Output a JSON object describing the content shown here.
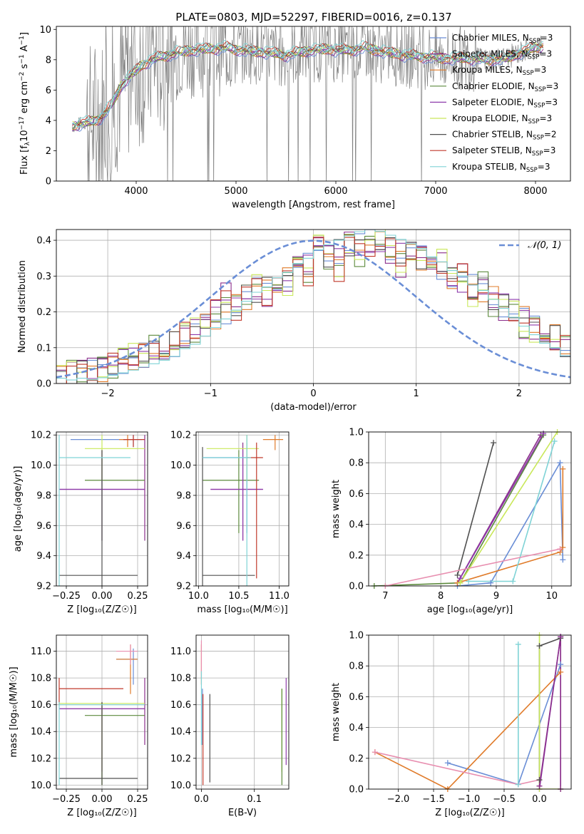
{
  "figure": {
    "title": "PLATE=0803, MJD=52297, FIBERID=0016, z=0.137"
  },
  "colors": {
    "grid": "#b0b0b0",
    "data_gray": "#808080",
    "gaussian": "#6a8ed6",
    "series": [
      "#6a8ed6",
      "#8b2f8b",
      "#e07b2a",
      "#5c8a3c",
      "#8e3bab",
      "#c9e85a",
      "#505050",
      "#c0392b",
      "#7fd3d6",
      "#e88fb0"
    ]
  },
  "chart_data": [
    {
      "type": "line",
      "id": "spectrum",
      "xlabel": "wavelength [Angstrom, rest frame]",
      "ylabel_parts": {
        "a": "Flux [f",
        "b": "λ",
        "c": "10",
        "d": "−17",
        "e": " erg cm",
        "f": "−2",
        "g": " s",
        "h": "−1",
        "i": " A",
        "j": "−1",
        "k": "]"
      },
      "xlim": [
        3200,
        8350
      ],
      "ylim": [
        0,
        10.2
      ],
      "xticks": [
        4000,
        5000,
        6000,
        7000,
        8000
      ],
      "yticks": [
        0,
        2,
        4,
        6,
        8,
        10
      ],
      "legend": "top-right",
      "series": [
        {
          "label": "Chabrier MILES, N",
          "sub": "SSP",
          "rest": "=3"
        },
        {
          "label": "Salpeter MILES, N",
          "sub": "SSP",
          "rest": "=3"
        },
        {
          "label": "Kroupa MILES, N",
          "sub": "SSP",
          "rest": "=3"
        },
        {
          "label": "Chabrier ELODIE, N",
          "sub": "SSP",
          "rest": "=3"
        },
        {
          "label": "Salpeter ELODIE, N",
          "sub": "SSP",
          "rest": "=3"
        },
        {
          "label": "Kroupa ELODIE, N",
          "sub": "SSP",
          "rest": "=3"
        },
        {
          "label": "Chabrier STELIB, N",
          "sub": "SSP",
          "rest": "=2"
        },
        {
          "label": "Salpeter STELIB, N",
          "sub": "SSP",
          "rest": "=3"
        },
        {
          "label": "Kroupa STELIB, N",
          "sub": "SSP",
          "rest": "=3"
        }
      ],
      "continuum": {
        "x": [
          3350,
          3450,
          3550,
          3650,
          3750,
          3850,
          3950,
          4050,
          4150,
          4300,
          4500,
          4700,
          4900,
          5100,
          5300,
          5500,
          5700,
          5900,
          6100,
          6300,
          6500,
          6700,
          6900,
          7100,
          7300,
          7500,
          7700,
          7900,
          8050
        ],
        "y": [
          3.6,
          3.8,
          3.9,
          4.2,
          5.0,
          6.3,
          7.0,
          7.6,
          8.0,
          8.3,
          8.6,
          8.7,
          8.8,
          8.6,
          8.5,
          8.3,
          8.6,
          8.7,
          8.6,
          8.8,
          8.5,
          8.3,
          8.2,
          8.1,
          8.1,
          8.0,
          8.1,
          8.6,
          8.9
        ]
      }
    },
    {
      "type": "histogram",
      "id": "residuals",
      "xlabel": "(data-model)/error",
      "ylabel": "Normed distribution",
      "xlim": [
        -2.5,
        2.5
      ],
      "ylim": [
        0,
        0.43
      ],
      "xticks": [
        -2,
        -1,
        0,
        1,
        2
      ],
      "yticks": [
        0.0,
        0.1,
        0.2,
        0.3,
        0.4
      ],
      "legend_label": "𝒩(0, 1)",
      "legend": "top-right",
      "bin_width": 0.1,
      "bin_start": -2.5,
      "series": [
        [
          0.02,
          0.02,
          0.03,
          0.03,
          0.04,
          0.05,
          0.06,
          0.07,
          0.08,
          0.09,
          0.1,
          0.11,
          0.13,
          0.14,
          0.16,
          0.18,
          0.2,
          0.22,
          0.24,
          0.26,
          0.27,
          0.29,
          0.3,
          0.32,
          0.33,
          0.35,
          0.36,
          0.37,
          0.38,
          0.39,
          0.4,
          0.39,
          0.38,
          0.37,
          0.36,
          0.35,
          0.33,
          0.32,
          0.3,
          0.29,
          0.27,
          0.26,
          0.24,
          0.22,
          0.2,
          0.18,
          0.16,
          0.14,
          0.13,
          0.11
        ],
        [
          0.02,
          0.03,
          0.03,
          0.04,
          0.05,
          0.05,
          0.07,
          0.08,
          0.08,
          0.1,
          0.11,
          0.1,
          0.14,
          0.15,
          0.15,
          0.2,
          0.26,
          0.21,
          0.25,
          0.27,
          0.25,
          0.3,
          0.28,
          0.36,
          0.3,
          0.38,
          0.35,
          0.32,
          0.4,
          0.36,
          0.38,
          0.4,
          0.37,
          0.33,
          0.38,
          0.36,
          0.31,
          0.34,
          0.29,
          0.3,
          0.25,
          0.28,
          0.22,
          0.2,
          0.21,
          0.16,
          0.15,
          0.15,
          0.11,
          0.1
        ]
      ]
    },
    {
      "type": "scatter",
      "id": "age-vs-Z",
      "xlabel": "Z [log₁₀(Z/Z☉)]",
      "ylabel": "age  [log₁₀(age/yr)]",
      "xlim": [
        -0.32,
        0.32
      ],
      "ylim": [
        9.2,
        10.22
      ],
      "xticks": [
        -0.25,
        0.0,
        0.25
      ],
      "yticks": [
        9.2,
        9.4,
        9.6,
        9.8,
        10.0,
        10.2
      ],
      "points": [
        {
          "x": 0.22,
          "y": 10.17,
          "xe": [
            -0.22,
            0.28
          ],
          "ye": [
            10.12,
            10.2
          ],
          "c": 0
        },
        {
          "x": 0.3,
          "y": 9.84,
          "xe": [
            -0.3,
            0.3
          ],
          "ye": [
            9.5,
            10.2
          ],
          "c": 1
        },
        {
          "x": 0.18,
          "y": 10.17,
          "xe": [
            0.12,
            0.22
          ],
          "ye": [
            10.12,
            10.2
          ],
          "c": 2
        },
        {
          "x": 0.0,
          "y": 9.9,
          "xe": [
            -0.12,
            0.3
          ],
          "ye": [
            9.5,
            10.05
          ],
          "c": 3
        },
        {
          "x": 0.0,
          "y": 9.84,
          "xe": [
            -0.3,
            0.3
          ],
          "ye": [
            9.5,
            10.1
          ],
          "c": 4
        },
        {
          "x": 0.0,
          "y": 10.11,
          "xe": [
            -0.12,
            0.3
          ],
          "ye": [
            9.9,
            10.2
          ],
          "c": 5
        },
        {
          "x": 0.0,
          "y": 9.27,
          "xe": [
            -0.3,
            0.25
          ],
          "ye": [
            9.2,
            10.1
          ],
          "c": 6
        },
        {
          "x": 0.22,
          "y": 10.17,
          "xe": [
            0.15,
            0.3
          ],
          "ye": [
            10.12,
            10.2
          ],
          "c": 7
        },
        {
          "x": -0.3,
          "y": 10.05,
          "xe": [
            -0.3,
            0.2
          ],
          "ye": [
            9.2,
            10.2
          ],
          "c": 8
        }
      ]
    },
    {
      "type": "scatter",
      "id": "age-vs-mass",
      "xlabel": "mass [log₁₀(M/M☉)]",
      "ylabel": "",
      "xlim": [
        9.97,
        11.12
      ],
      "ylim": [
        9.2,
        10.22
      ],
      "xticks": [
        10.0,
        10.5,
        11.0
      ],
      "yticks": [
        9.2,
        9.4,
        9.6,
        9.8,
        10.0,
        10.2
      ],
      "points": [
        {
          "x": 10.6,
          "y": 10.05,
          "xe": [
            10.05,
            10.62
          ],
          "ye": [
            9.55,
            10.15
          ],
          "c": 0
        },
        {
          "x": 10.55,
          "y": 9.84,
          "xe": [
            10.15,
            10.8
          ],
          "ye": [
            9.5,
            10.15
          ],
          "c": 1
        },
        {
          "x": 10.95,
          "y": 10.17,
          "xe": [
            10.8,
            11.05
          ],
          "ye": [
            10.1,
            10.2
          ],
          "c": 2
        },
        {
          "x": 10.5,
          "y": 9.9,
          "xe": [
            10.05,
            10.75
          ],
          "ye": [
            9.55,
            10.1
          ],
          "c": 3
        },
        {
          "x": 10.55,
          "y": 9.84,
          "xe": [
            10.15,
            10.8
          ],
          "ye": [
            9.5,
            10.1
          ],
          "c": 4
        },
        {
          "x": 10.6,
          "y": 10.11,
          "xe": [
            10.1,
            10.75
          ],
          "ye": [
            9.9,
            10.2
          ],
          "c": 5
        },
        {
          "x": 10.05,
          "y": 9.27,
          "xe": [
            10.05,
            10.7
          ],
          "ye": [
            9.2,
            10.12
          ],
          "c": 6
        },
        {
          "x": 10.72,
          "y": 10.05,
          "xe": [
            10.6,
            10.8
          ],
          "ye": [
            9.25,
            10.15
          ],
          "c": 7
        },
        {
          "x": 10.6,
          "y": 10.05,
          "xe": [
            10.05,
            10.65
          ],
          "ye": [
            9.2,
            10.2
          ],
          "c": 8
        }
      ]
    },
    {
      "type": "line",
      "id": "mass-weight-vs-age",
      "xlabel": "age  [log₁₀(age/yr)]",
      "ylabel": "mass weight",
      "xlim": [
        6.7,
        10.35
      ],
      "ylim": [
        0.0,
        1.0
      ],
      "xticks": [
        7,
        8,
        9,
        10
      ],
      "yticks": [
        0.0,
        0.2,
        0.4,
        0.6,
        0.8,
        1.0
      ],
      "series": [
        {
          "c": 0,
          "x": [
            8.3,
            8.9,
            10.15,
            10.2
          ],
          "y": [
            0.0,
            0.02,
            0.8,
            0.17
          ]
        },
        {
          "c": 1,
          "x": [
            8.3,
            9.8
          ],
          "y": [
            0.02,
            0.98
          ]
        },
        {
          "c": 2,
          "x": [
            8.3,
            10.15,
            10.2,
            10.2
          ],
          "y": [
            0.02,
            0.22,
            0.25,
            0.76
          ]
        },
        {
          "c": 3,
          "x": [
            6.8,
            8.35,
            9.85
          ],
          "y": [
            0.0,
            0.02,
            0.98
          ]
        },
        {
          "c": 4,
          "x": [
            8.35,
            9.85
          ],
          "y": [
            0.05,
            0.99
          ]
        },
        {
          "c": 5,
          "x": [
            8.35,
            10.1
          ],
          "y": [
            0.02,
            1.0
          ]
        },
        {
          "c": 6,
          "x": [
            8.3,
            8.95
          ],
          "y": [
            0.07,
            0.93
          ]
        },
        {
          "c": 8,
          "x": [
            8.5,
            9.3,
            10.05
          ],
          "y": [
            0.03,
            0.03,
            0.94
          ]
        },
        {
          "c": 9,
          "x": [
            7.0,
            10.15
          ],
          "y": [
            0.0,
            0.24
          ]
        }
      ]
    },
    {
      "type": "scatter",
      "id": "mass-vs-Z",
      "xlabel": "Z [log₁₀(Z/Z☉)]",
      "ylabel": "mass [log₁₀(M/M☉)]",
      "xlim": [
        -0.32,
        0.32
      ],
      "ylim": [
        9.97,
        11.12
      ],
      "xticks": [
        -0.25,
        0.0,
        0.25
      ],
      "yticks": [
        10.0,
        10.2,
        10.4,
        10.6,
        10.8,
        11.0
      ],
      "points": [
        {
          "x": 0.22,
          "y": 10.94,
          "xe": [
            0.1,
            0.25
          ],
          "ye": [
            10.75,
            11.02
          ],
          "c": 0
        },
        {
          "x": 0.3,
          "y": 10.57,
          "xe": [
            -0.3,
            0.3
          ],
          "ye": [
            10.3,
            10.8
          ],
          "c": 1
        },
        {
          "x": 0.2,
          "y": 10.94,
          "xe": [
            0.1,
            0.25
          ],
          "ye": [
            10.68,
            11.05
          ],
          "c": 2
        },
        {
          "x": 0.0,
          "y": 10.52,
          "xe": [
            -0.12,
            0.3
          ],
          "ye": [
            10.0,
            10.6
          ],
          "c": 3
        },
        {
          "x": 0.0,
          "y": 10.57,
          "xe": [
            -0.3,
            0.3
          ],
          "ye": [
            10.1,
            10.62
          ],
          "c": 4
        },
        {
          "x": 0.0,
          "y": 10.61,
          "xe": [
            -0.3,
            0.3
          ],
          "ye": [
            10.0,
            10.62
          ],
          "c": 5
        },
        {
          "x": 0.0,
          "y": 10.05,
          "xe": [
            -0.3,
            0.25
          ],
          "ye": [
            10.0,
            10.62
          ],
          "c": 6
        },
        {
          "x": -0.3,
          "y": 10.72,
          "xe": [
            -0.3,
            0.15
          ],
          "ye": [
            10.6,
            10.8
          ],
          "c": 7
        },
        {
          "x": -0.3,
          "y": 10.6,
          "xe": [
            -0.3,
            0.3
          ],
          "ye": [
            10.0,
            10.62
          ],
          "c": 8
        },
        {
          "x": 0.2,
          "y": 11.0,
          "xe": [
            0.1,
            0.25
          ],
          "ye": [
            10.9,
            11.05
          ],
          "c": 9
        }
      ]
    },
    {
      "type": "scatter",
      "id": "mass-vs-EBV",
      "xlabel": "E(B-V)",
      "ylabel": "",
      "xlim": [
        -0.01,
        0.165
      ],
      "ylim": [
        9.97,
        11.12
      ],
      "xticks": [
        0.0,
        0.1
      ],
      "yticks": [
        10.0,
        10.2,
        10.4,
        10.6,
        10.8,
        11.0
      ],
      "points": [
        {
          "x": 0.0,
          "y": 10.94,
          "ye": [
            10.75,
            11.05
          ],
          "c": 2
        },
        {
          "x": 0.0,
          "y": 10.94,
          "ye": [
            10.8,
            11.08
          ],
          "c": 9
        },
        {
          "x": 0.0,
          "y": 10.6,
          "ye": [
            10.3,
            10.85
          ],
          "c": 8
        },
        {
          "x": 0.002,
          "y": 10.6,
          "ye": [
            10.3,
            10.72
          ],
          "c": 0
        },
        {
          "x": 0.016,
          "y": 10.3,
          "ye": [
            10.02,
            10.68
          ],
          "c": 6
        },
        {
          "x": 0.003,
          "y": 10.6,
          "ye": [
            10.0,
            10.68
          ],
          "c": 7
        },
        {
          "x": 0.152,
          "y": 10.4,
          "ye": [
            10.1,
            10.72
          ],
          "c": 5
        },
        {
          "x": 0.152,
          "y": 10.4,
          "ye": [
            10.0,
            10.72
          ],
          "c": 3
        },
        {
          "x": 0.16,
          "y": 10.45,
          "ye": [
            10.15,
            10.8
          ],
          "c": 4
        }
      ]
    },
    {
      "type": "line",
      "id": "mass-weight-vs-Z",
      "xlabel": "Z [log₁₀(Z/Z☉)]",
      "ylabel": "mass weight",
      "xlim": [
        -2.42,
        0.45
      ],
      "ylim": [
        0.0,
        1.0
      ],
      "xticks": [
        -2.0,
        -1.5,
        -1.0,
        -0.5,
        0.0
      ],
      "yticks": [
        0.0,
        0.2,
        0.4,
        0.6,
        0.8,
        1.0
      ],
      "series": [
        {
          "c": 0,
          "x": [
            -1.3,
            -0.3,
            0.3
          ],
          "y": [
            0.17,
            0.03,
            0.81
          ]
        },
        {
          "c": 2,
          "x": [
            -2.33,
            -1.3,
            0.3
          ],
          "y": [
            0.24,
            0.0,
            0.76
          ]
        },
        {
          "c": 9,
          "x": [
            -2.33,
            -0.3,
            0.0
          ],
          "y": [
            0.24,
            0.03,
            0.06
          ]
        },
        {
          "c": 8,
          "x": [
            -0.3,
            -0.3
          ],
          "y": [
            0.03,
            0.94
          ]
        },
        {
          "c": 6,
          "x": [
            0.0,
            0.0,
            0.3
          ],
          "y": [
            0.06,
            0.93,
            0.98
          ]
        },
        {
          "c": 4,
          "x": [
            0.0,
            0.3,
            0.3
          ],
          "y": [
            0.0,
            0.99,
            0.0
          ]
        },
        {
          "c": 5,
          "x": [
            0.0,
            0.0,
            0.3
          ],
          "y": [
            1.0,
            0.0,
            0.0
          ]
        },
        {
          "c": 1,
          "x": [
            0.3,
            0.3,
            0.0
          ],
          "y": [
            0.0,
            0.99,
            0.02
          ]
        }
      ]
    }
  ]
}
